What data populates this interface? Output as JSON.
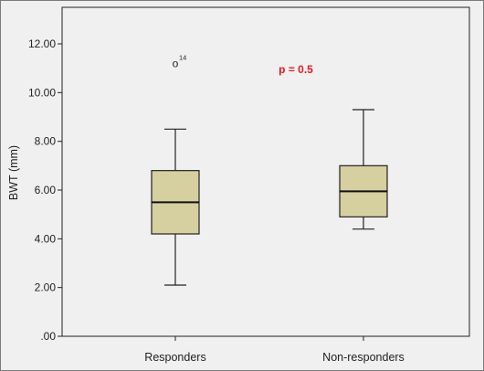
{
  "chart_data": {
    "type": "box",
    "ylabel": "BWT (mm)",
    "xlabel": "",
    "ylim": [
      0,
      13.5
    ],
    "yticks": [
      0,
      2,
      4,
      6,
      8,
      10,
      12
    ],
    "ytick_labels": [
      ".00",
      "2.00",
      "4.00",
      "6.00",
      "8.00",
      "10.00",
      "12.00"
    ],
    "categories": [
      "Responders",
      "Non-responders"
    ],
    "boxes": [
      {
        "category": "Responders",
        "whisker_low": 2.1,
        "q1": 4.2,
        "median": 5.5,
        "q3": 6.8,
        "whisker_high": 8.5,
        "outliers": [
          {
            "value": 11.2,
            "label": "14"
          }
        ]
      },
      {
        "category": "Non-responders",
        "whisker_low": 4.4,
        "q1": 4.9,
        "median": 5.95,
        "q3": 7.0,
        "whisker_high": 9.3,
        "outliers": []
      }
    ],
    "annotation": "p = 0.5",
    "colors": {
      "box_fill": "#d6cf9f",
      "annotation": "#e01b24",
      "plot_bg": "#f0f0f0"
    },
    "outlier_marker": "o"
  }
}
